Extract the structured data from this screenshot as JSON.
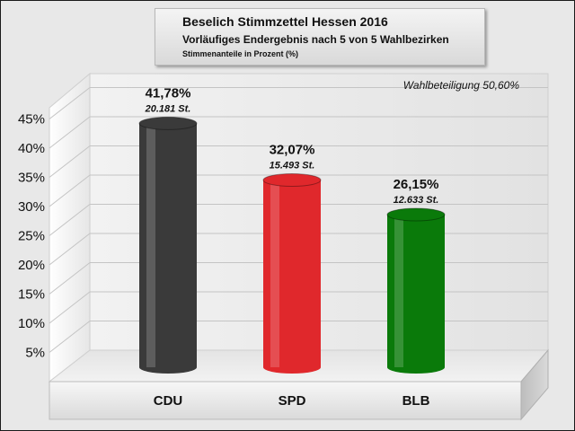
{
  "header": {
    "title": "Beselich Stimmzettel Hessen 2016",
    "subtitle": "Vorläufiges Endergebnis nach 5 von 5 Wahlbezirken",
    "subsubtitle": "Stimmenanteile in Prozent (%)"
  },
  "chart_data": {
    "type": "bar",
    "title": "Beselich Stimmzettel Hessen 2016",
    "annotation": "Wahlbeteiligung 50,60%",
    "categories": [
      "CDU",
      "SPD",
      "BLB"
    ],
    "values": [
      41.78,
      32.07,
      26.15
    ],
    "value_labels": [
      "41,78%",
      "32,07%",
      "26,15%"
    ],
    "vote_labels": [
      "20.181 St.",
      "15.493 St.",
      "12.633 St."
    ],
    "colors": [
      "#3a3a3a",
      "#e0282c",
      "#0a7a0a"
    ],
    "yticks": [
      "5%",
      "10%",
      "15%",
      "20%",
      "25%",
      "30%",
      "35%",
      "40%",
      "45%"
    ],
    "ylim": [
      0,
      45
    ],
    "grid": true,
    "xlabel": "",
    "ylabel": ""
  }
}
